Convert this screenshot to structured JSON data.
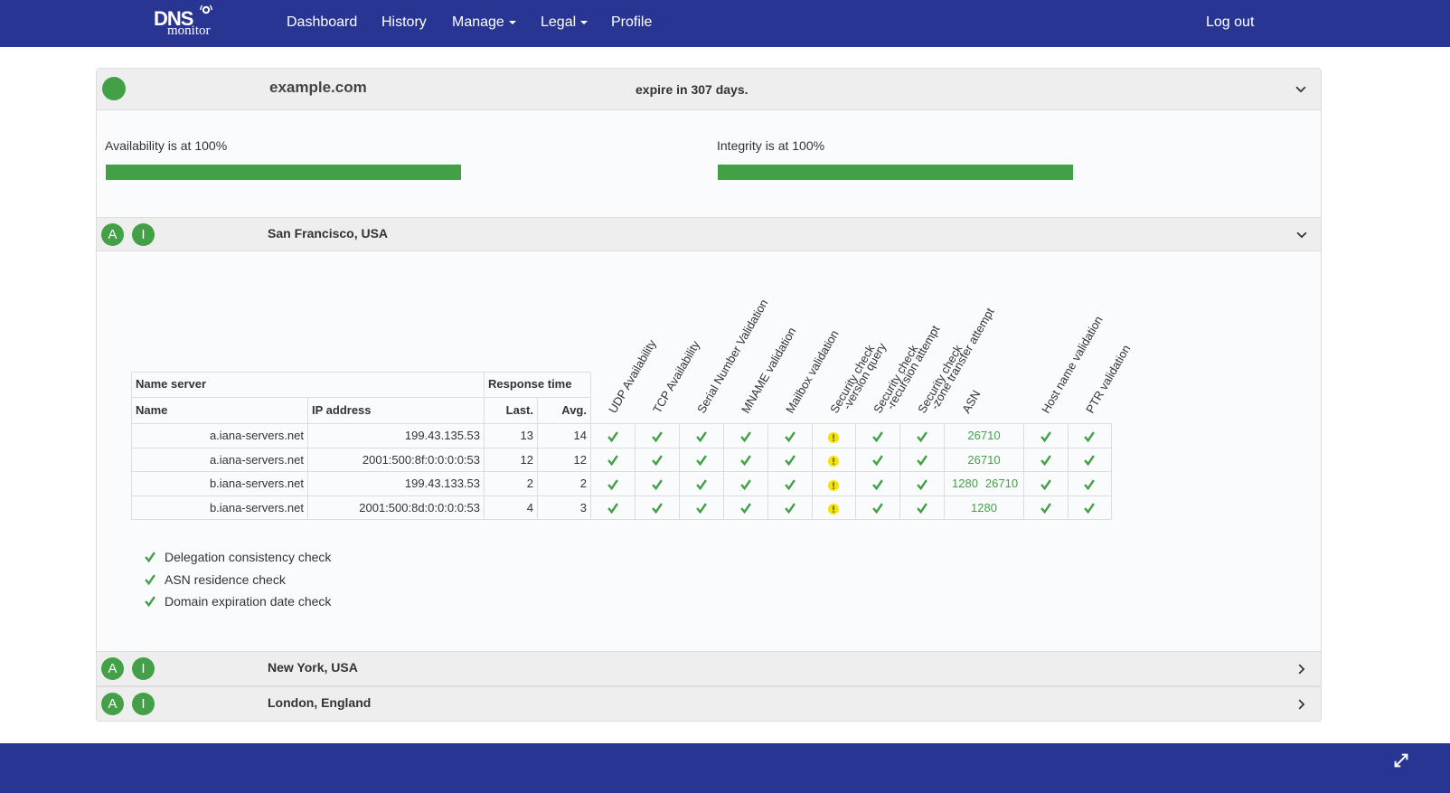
{
  "nav": {
    "logo_top": "DNS",
    "logo_bottom": "monitor",
    "links": [
      "Dashboard",
      "History",
      "Manage",
      "Legal",
      "Profile"
    ],
    "dropdowns": [
      false,
      false,
      true,
      true,
      false
    ],
    "logout": "Log out"
  },
  "domain": {
    "name": "example.com",
    "expiry": "expire in 307 days."
  },
  "availability": {
    "label": "Availability is at 100%",
    "value": 100
  },
  "integrity": {
    "label": "Integrity is at 100%",
    "value": 100
  },
  "locations": [
    {
      "name": "San Francisco, USA",
      "badges": [
        "A",
        "I"
      ],
      "expanded": true
    },
    {
      "name": "New York, USA",
      "badges": [
        "A",
        "I"
      ],
      "expanded": false
    },
    {
      "name": "London, England",
      "badges": [
        "A",
        "I"
      ],
      "expanded": false
    }
  ],
  "table": {
    "group_headers": [
      "Name server",
      "Response time"
    ],
    "headers": [
      "Name",
      "IP address",
      "Last.",
      "Avg."
    ],
    "check_headers": [
      [
        "UDP Availability"
      ],
      [
        "TCP Availability"
      ],
      [
        "Serial Number Validation"
      ],
      [
        "MNAME validation"
      ],
      [
        "Mailbox validation"
      ],
      [
        "Security check",
        "-version query"
      ],
      [
        "Security check",
        "-recursion attempt"
      ],
      [
        "Security check",
        "-zone transfer attempt"
      ],
      [
        "ASN"
      ],
      [
        "Host name validation"
      ],
      [
        "PTR validation"
      ]
    ],
    "rows": [
      {
        "name": "a.iana-servers.net",
        "ip": "199.43.135.53",
        "last": 13,
        "avg": 14,
        "cells": [
          "ok",
          "ok",
          "ok",
          "ok",
          "ok",
          "warn",
          "ok",
          "ok",
          [
            26710
          ],
          "ok",
          "ok"
        ]
      },
      {
        "name": "a.iana-servers.net",
        "ip": "2001:500:8f:0:0:0:0:53",
        "last": 12,
        "avg": 12,
        "cells": [
          "ok",
          "ok",
          "ok",
          "ok",
          "ok",
          "warn",
          "ok",
          "ok",
          [
            26710
          ],
          "ok",
          "ok"
        ]
      },
      {
        "name": "b.iana-servers.net",
        "ip": "199.43.133.53",
        "last": 2,
        "avg": 2,
        "cells": [
          "ok",
          "ok",
          "ok",
          "ok",
          "ok",
          "warn",
          "ok",
          "ok",
          [
            1280,
            26710
          ],
          "ok",
          "ok"
        ]
      },
      {
        "name": "b.iana-servers.net",
        "ip": "2001:500:8d:0:0:0:0:53",
        "last": 4,
        "avg": 3,
        "cells": [
          "ok",
          "ok",
          "ok",
          "ok",
          "ok",
          "warn",
          "ok",
          "ok",
          [
            1280
          ],
          "ok",
          "ok"
        ]
      }
    ]
  },
  "checks": [
    "Delegation consistency check",
    "ASN residence check",
    "Domain expiration date check"
  ]
}
